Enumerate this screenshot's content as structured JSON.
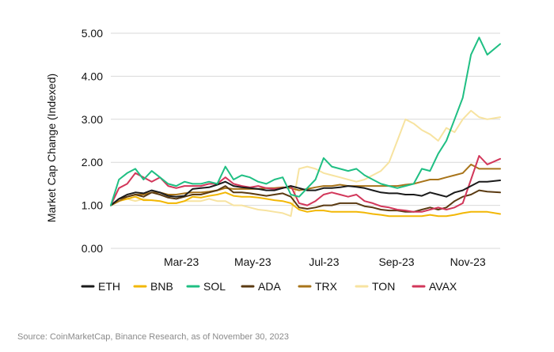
{
  "chart_data": {
    "type": "line",
    "ylabel": "Market Cap Change (Indexed)",
    "xlabel": "",
    "ylim": [
      0,
      5
    ],
    "yticks": [
      "0.00",
      "1.00",
      "2.00",
      "3.00",
      "4.00",
      "5.00"
    ],
    "ytick_values": [
      0,
      1,
      2,
      3,
      4,
      5
    ],
    "xlim": [
      "2023-01-01",
      "2023-11-30"
    ],
    "xtick_labels": [
      "Mar-23",
      "May-23",
      "Jul-23",
      "Sep-23",
      "Nov-23"
    ],
    "xtick_dates": [
      "2023-03-01",
      "2023-05-01",
      "2023-07-01",
      "2023-09-01",
      "2023-11-01"
    ],
    "x": [
      "2023-01-01",
      "2023-01-08",
      "2023-01-15",
      "2023-01-22",
      "2023-01-29",
      "2023-02-05",
      "2023-02-12",
      "2023-02-19",
      "2023-02-26",
      "2023-03-05",
      "2023-03-12",
      "2023-03-19",
      "2023-03-26",
      "2023-04-02",
      "2023-04-09",
      "2023-04-16",
      "2023-04-23",
      "2023-04-30",
      "2023-05-07",
      "2023-05-14",
      "2023-05-21",
      "2023-05-28",
      "2023-06-04",
      "2023-06-11",
      "2023-06-18",
      "2023-06-25",
      "2023-07-02",
      "2023-07-09",
      "2023-07-16",
      "2023-07-23",
      "2023-07-30",
      "2023-08-06",
      "2023-08-13",
      "2023-08-20",
      "2023-08-27",
      "2023-09-03",
      "2023-09-10",
      "2023-09-17",
      "2023-09-24",
      "2023-10-01",
      "2023-10-08",
      "2023-10-15",
      "2023-10-22",
      "2023-10-29",
      "2023-11-05",
      "2023-11-12",
      "2023-11-19",
      "2023-11-30"
    ],
    "series": [
      {
        "name": "ETH",
        "color": "#1a1a1a",
        "values": [
          1.0,
          1.15,
          1.25,
          1.3,
          1.28,
          1.35,
          1.3,
          1.22,
          1.2,
          1.22,
          1.38,
          1.4,
          1.42,
          1.48,
          1.55,
          1.45,
          1.42,
          1.4,
          1.38,
          1.35,
          1.35,
          1.4,
          1.45,
          1.4,
          1.35,
          1.35,
          1.4,
          1.4,
          1.42,
          1.45,
          1.43,
          1.4,
          1.35,
          1.3,
          1.28,
          1.28,
          1.25,
          1.25,
          1.22,
          1.3,
          1.25,
          1.2,
          1.3,
          1.35,
          1.45,
          1.55,
          1.55,
          1.58
        ]
      },
      {
        "name": "BNB",
        "color": "#f2b705",
        "values": [
          1.0,
          1.1,
          1.15,
          1.2,
          1.12,
          1.12,
          1.1,
          1.05,
          1.05,
          1.1,
          1.2,
          1.18,
          1.22,
          1.25,
          1.3,
          1.22,
          1.2,
          1.2,
          1.18,
          1.15,
          1.12,
          1.1,
          1.05,
          0.9,
          0.85,
          0.88,
          0.88,
          0.85,
          0.85,
          0.85,
          0.85,
          0.83,
          0.8,
          0.78,
          0.75,
          0.75,
          0.75,
          0.75,
          0.75,
          0.78,
          0.75,
          0.75,
          0.78,
          0.82,
          0.85,
          0.85,
          0.85,
          0.8
        ]
      },
      {
        "name": "SOL",
        "color": "#1fbf83",
        "values": [
          1.0,
          1.6,
          1.75,
          1.85,
          1.6,
          1.8,
          1.65,
          1.5,
          1.45,
          1.55,
          1.5,
          1.5,
          1.55,
          1.5,
          1.9,
          1.6,
          1.7,
          1.65,
          1.55,
          1.5,
          1.6,
          1.65,
          1.25,
          1.2,
          1.4,
          1.6,
          2.1,
          1.9,
          1.85,
          1.8,
          1.85,
          1.7,
          1.6,
          1.5,
          1.45,
          1.4,
          1.45,
          1.5,
          1.85,
          1.8,
          2.2,
          2.5,
          3.0,
          3.5,
          4.5,
          4.9,
          4.5,
          4.75
        ]
      },
      {
        "name": "ADA",
        "color": "#5a3a12",
        "values": [
          1.0,
          1.15,
          1.2,
          1.25,
          1.2,
          1.3,
          1.25,
          1.18,
          1.15,
          1.2,
          1.25,
          1.25,
          1.3,
          1.35,
          1.45,
          1.3,
          1.3,
          1.28,
          1.25,
          1.22,
          1.25,
          1.28,
          1.2,
          0.95,
          0.92,
          0.95,
          1.0,
          1.0,
          1.05,
          1.05,
          1.05,
          0.98,
          0.95,
          0.9,
          0.88,
          0.88,
          0.85,
          0.85,
          0.9,
          0.95,
          0.9,
          0.95,
          1.1,
          1.2,
          1.25,
          1.35,
          1.32,
          1.3
        ]
      },
      {
        "name": "TRX",
        "color": "#a8741a",
        "values": [
          1.0,
          1.1,
          1.2,
          1.25,
          1.25,
          1.3,
          1.3,
          1.25,
          1.25,
          1.28,
          1.3,
          1.3,
          1.32,
          1.35,
          1.4,
          1.38,
          1.38,
          1.38,
          1.38,
          1.4,
          1.4,
          1.42,
          1.4,
          1.35,
          1.38,
          1.42,
          1.45,
          1.45,
          1.48,
          1.45,
          1.45,
          1.45,
          1.45,
          1.45,
          1.45,
          1.45,
          1.48,
          1.5,
          1.55,
          1.6,
          1.6,
          1.65,
          1.7,
          1.75,
          1.95,
          1.85,
          1.85,
          1.85
        ]
      },
      {
        "name": "TON",
        "color": "#f7e3a0",
        "values": [
          1.0,
          1.1,
          1.15,
          1.1,
          1.15,
          1.12,
          1.1,
          1.05,
          1.05,
          1.1,
          1.1,
          1.1,
          1.15,
          1.1,
          1.1,
          1.0,
          1.0,
          0.95,
          0.9,
          0.88,
          0.85,
          0.82,
          0.75,
          1.85,
          1.9,
          1.85,
          1.75,
          1.7,
          1.65,
          1.6,
          1.55,
          1.6,
          1.7,
          1.8,
          2.0,
          2.5,
          3.0,
          2.9,
          2.75,
          2.65,
          2.5,
          2.8,
          2.7,
          3.0,
          3.2,
          3.05,
          3.0,
          3.05
        ]
      },
      {
        "name": "AVAX",
        "color": "#d2375a",
        "values": [
          1.0,
          1.4,
          1.5,
          1.75,
          1.65,
          1.55,
          1.65,
          1.45,
          1.4,
          1.45,
          1.45,
          1.45,
          1.5,
          1.5,
          1.65,
          1.5,
          1.45,
          1.42,
          1.45,
          1.4,
          1.38,
          1.4,
          1.45,
          1.05,
          1.0,
          1.1,
          1.25,
          1.3,
          1.25,
          1.2,
          1.25,
          1.1,
          1.05,
          0.98,
          0.95,
          0.9,
          0.88,
          0.85,
          0.85,
          0.9,
          0.95,
          0.9,
          0.95,
          1.05,
          1.6,
          2.15,
          1.95,
          2.08
        ]
      }
    ]
  },
  "source_note": "Source: CoinMarketCap, Binance Research, as of November 30, 2023"
}
